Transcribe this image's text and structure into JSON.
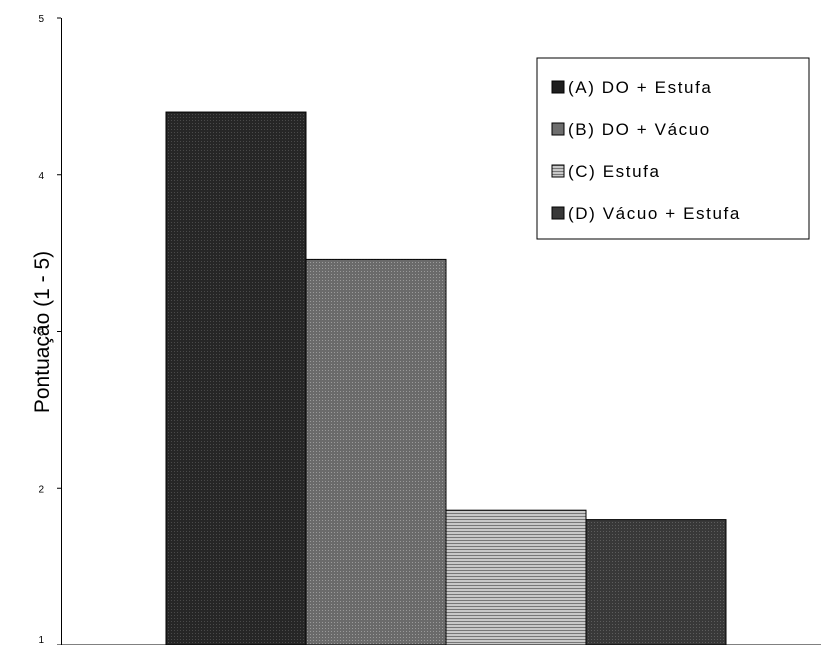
{
  "chart_data": {
    "type": "bar",
    "ylabel": "Pontuação (1 - 5)",
    "ylim": [
      1,
      5
    ],
    "yticks": [
      "1",
      "2",
      "3",
      "4",
      "5"
    ],
    "grid": false,
    "legend_position": "top-right",
    "series": [
      {
        "name": "(A) DO + Estufa",
        "value": 4.4,
        "color": "#262626",
        "pattern": "dense-dots"
      },
      {
        "name": "(B) DO + Vácuo",
        "value": 3.46,
        "color": "#707070",
        "pattern": "dots"
      },
      {
        "name": "(C) Estufa",
        "value": 1.86,
        "color": "#a8a8a8",
        "pattern": "horizontal-lines"
      },
      {
        "name": "(D) Vácuo + Estufa",
        "value": 1.8,
        "color": "#3c3c3c",
        "pattern": "dense-dots"
      }
    ]
  }
}
